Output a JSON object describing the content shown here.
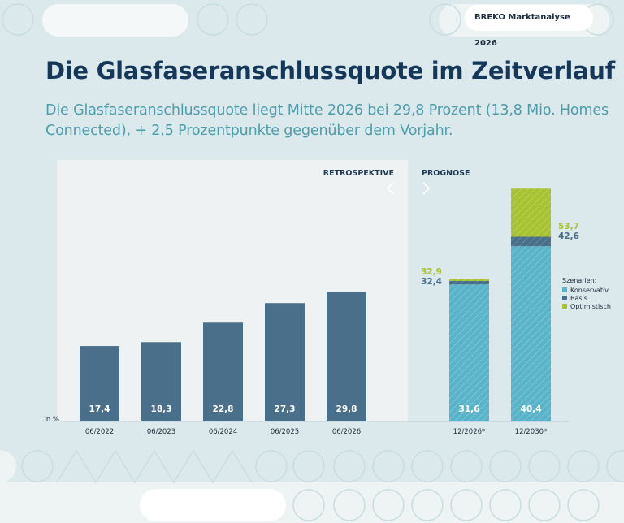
{
  "header": {
    "badge": "BREKO Marktanalyse 2026"
  },
  "title": "Die Glasfaseranschlussquote im Zeitverlauf",
  "subtitle": "Die Glasfaseranschlussquote liegt Mitte 2026 bei 29,8 Prozent (13,8 Mio. Homes Connected), + 2,5 Prozentpunkte gegenüber dem Vorjahr.",
  "colors": {
    "background": "#dbe9ec",
    "bar_retro": "#4a6f8a",
    "konservativ": "#5ab4c9",
    "basis": "#4a6f8a",
    "optimistisch": "#a7c233",
    "title": "#15375a",
    "subtitle": "#4d9dab"
  },
  "chart_data": {
    "type": "bar",
    "unit_label": "in %",
    "sections": {
      "retrospektive": "RETROSPEKTIVE",
      "prognose": "PROGNOSE"
    },
    "retrospektive": {
      "categories": [
        "06/2022",
        "06/2023",
        "06/2024",
        "06/2025",
        "06/2026"
      ],
      "values": [
        17.4,
        18.3,
        22.8,
        27.3,
        29.8
      ],
      "labels": [
        "17,4",
        "18,3",
        "22,8",
        "27,3",
        "29,8"
      ]
    },
    "prognose": {
      "categories": [
        "12/2026*",
        "12/2030*"
      ],
      "scenarios": [
        {
          "name": "Konservativ",
          "values": [
            31.6,
            40.4
          ],
          "labels": [
            "31,6",
            "40,4"
          ]
        },
        {
          "name": "Basis",
          "values": [
            32.4,
            42.6
          ],
          "labels": [
            "32,4",
            "42,6"
          ]
        },
        {
          "name": "Optimistisch",
          "values": [
            32.9,
            53.7
          ],
          "labels": [
            "32,9",
            "53,7"
          ]
        }
      ]
    },
    "legend": {
      "title": "Szenarien:",
      "position": "right"
    },
    "ylim": [
      0,
      55
    ]
  }
}
